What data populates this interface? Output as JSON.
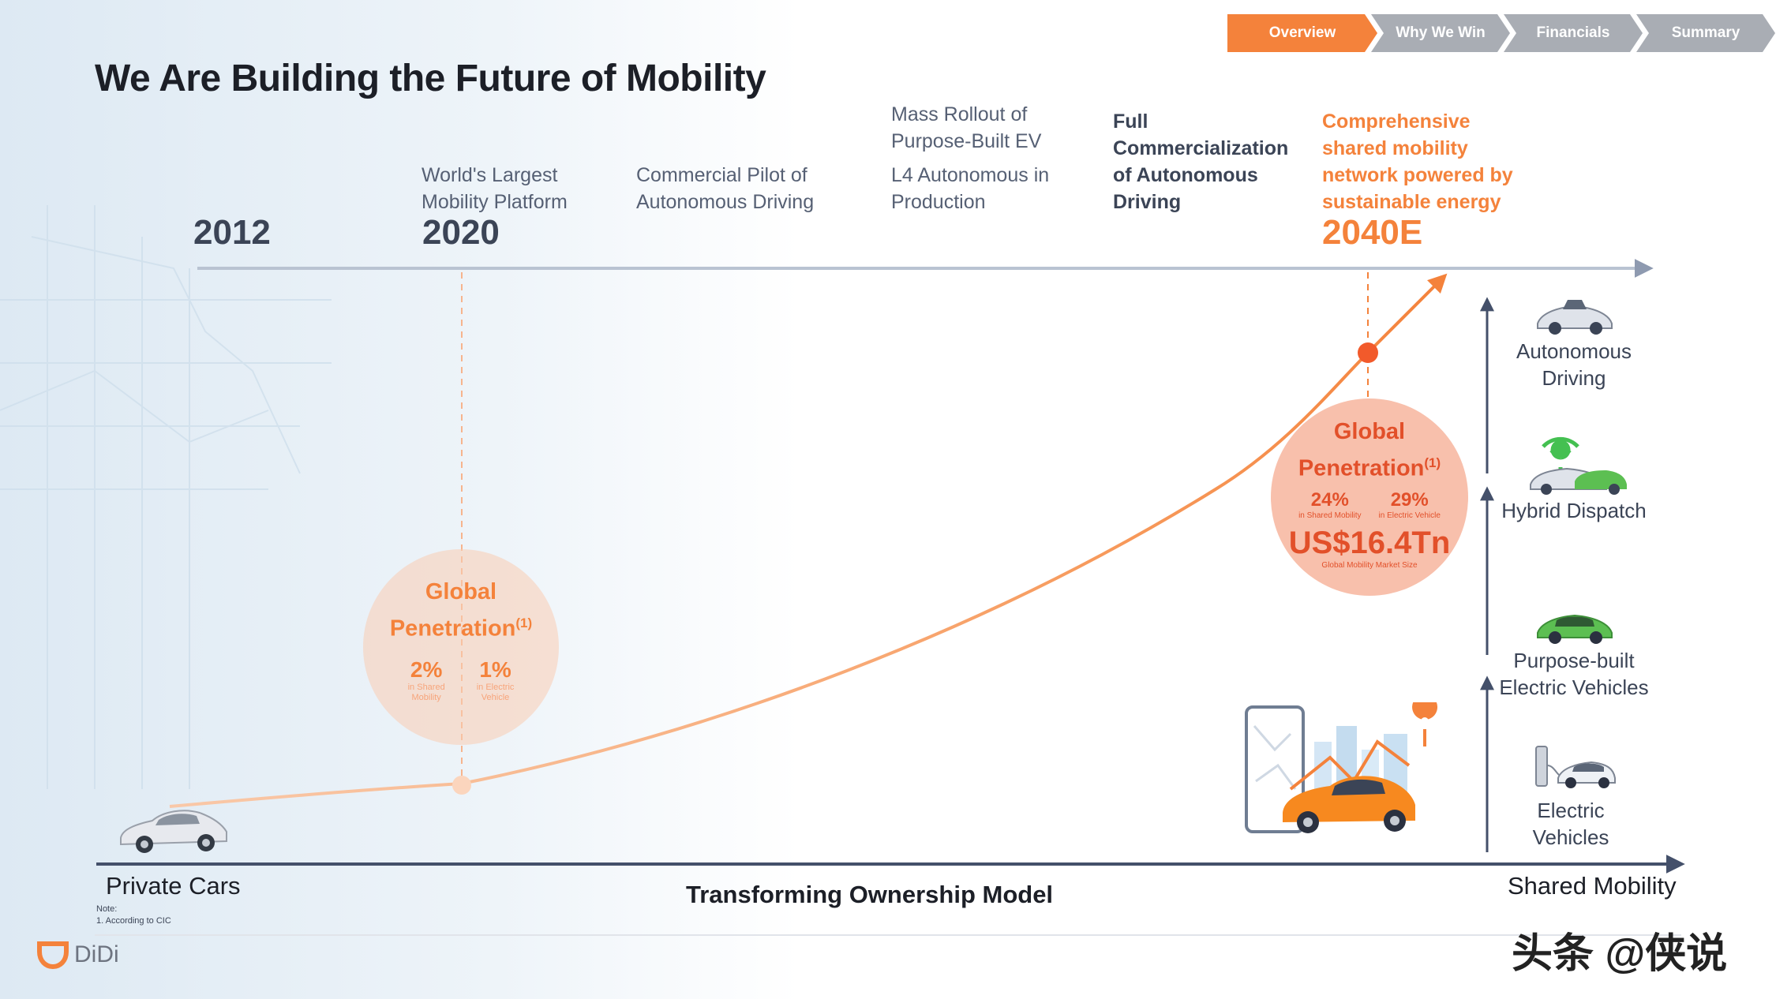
{
  "nav": {
    "tabs": [
      {
        "label": "Overview",
        "active": true
      },
      {
        "label": "Why We Win",
        "active": false
      },
      {
        "label": "Financials",
        "active": false
      },
      {
        "label": "Summary",
        "active": false
      }
    ]
  },
  "title": "We Are Building the Future of Mobility",
  "timeline": {
    "year_start": "2012",
    "year_2020": "2020",
    "year_end": "2040E",
    "milestones": {
      "m1": [
        "World's Largest",
        "Mobility Platform"
      ],
      "m2": [
        "Commercial Pilot of",
        "Autonomous Driving"
      ],
      "m3a": [
        "Mass Rollout of",
        "Purpose-Built EV"
      ],
      "m3b": [
        "L4 Autonomous in",
        "Production"
      ],
      "m4": [
        "Full",
        "Commercialization",
        "of Autonomous",
        "Driving"
      ],
      "m5": [
        "Comprehensive",
        "shared mobility",
        "network powered by",
        "sustainable energy"
      ]
    }
  },
  "penetration_2020": {
    "title_line1": "Global",
    "title_line2": "Penetration",
    "sup": "(1)",
    "shared_pct": "2%",
    "shared_note": [
      "in Shared",
      "Mobility"
    ],
    "ev_pct": "1%",
    "ev_note": [
      "in Electric",
      "Vehicle"
    ]
  },
  "penetration_2040": {
    "title_line1": "Global",
    "title_line2": "Penetration",
    "sup": "(1)",
    "shared_pct": "24%",
    "shared_note": "in Shared Mobility",
    "ev_pct": "29%",
    "ev_note": "in Electric Vehicle",
    "market_size": "US$16.4Tn",
    "market_note": "Global Mobility Market Size"
  },
  "side_stack": {
    "items": [
      {
        "label": [
          "Autonomous",
          "Driving"
        ],
        "icon": "autonomous-car-icon"
      },
      {
        "label": [
          "Hybrid Dispatch"
        ],
        "icon": "hybrid-dispatch-icon"
      },
      {
        "label": [
          "Purpose-built",
          "Electric Vehicles"
        ],
        "icon": "green-ev-icon"
      },
      {
        "label": [
          "Electric",
          "Vehicles"
        ],
        "icon": "charging-car-icon"
      }
    ]
  },
  "axis": {
    "left_label": "Private Cars",
    "center_label": "Transforming Ownership Model",
    "right_label": "Shared Mobility"
  },
  "note": {
    "heading": "Note:",
    "line1": "1.  According to CIC"
  },
  "logo": {
    "text": "DiDi"
  },
  "watermark": {
    "text": "头条 @侠说"
  },
  "colors": {
    "accent_orange": "#f4823b",
    "deep_orange": "#e2502a",
    "axis_navy": "#44506a",
    "text_dark": "#1c1f27",
    "tab_grey": "#a9adb4"
  }
}
